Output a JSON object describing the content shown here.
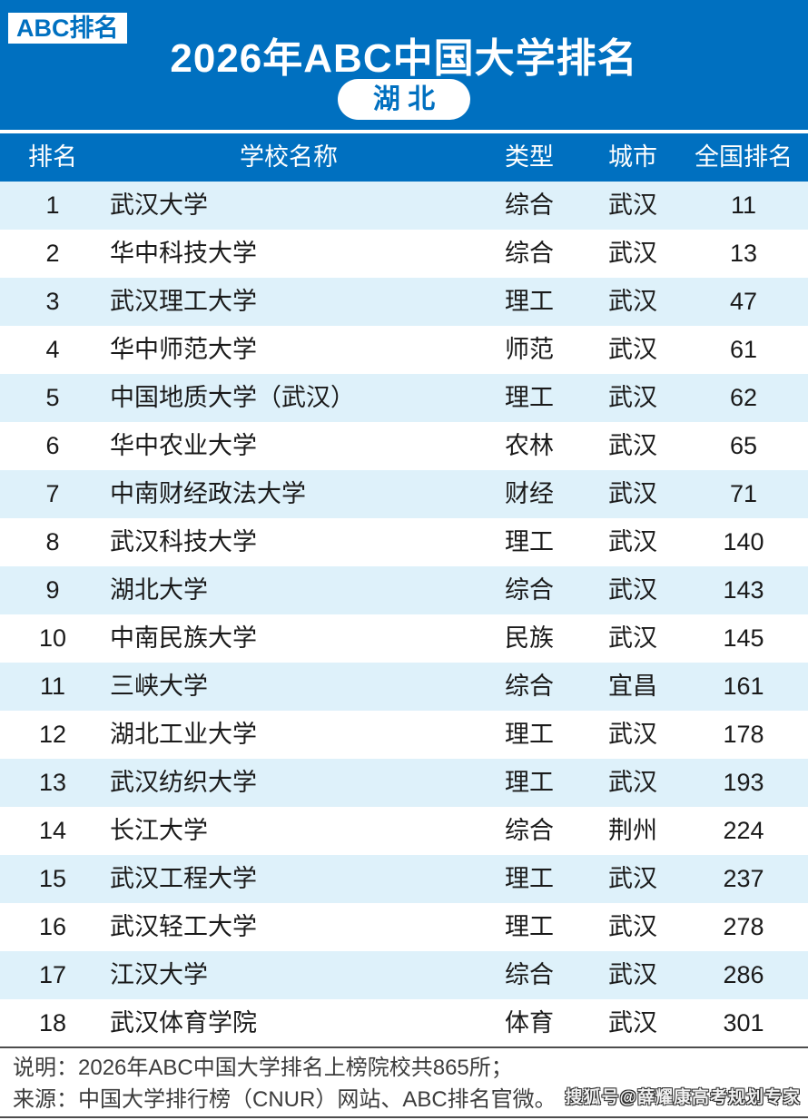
{
  "banner": {
    "badge": "ABC排名",
    "title": "2026年ABC中国大学排名",
    "province_pill": "湖 北"
  },
  "table": {
    "headers": [
      "排名",
      "学校名称",
      "类型",
      "城市",
      "全国排名"
    ],
    "rows": [
      [
        "1",
        "武汉大学",
        "综合",
        "武汉",
        "11"
      ],
      [
        "2",
        "华中科技大学",
        "综合",
        "武汉",
        "13"
      ],
      [
        "3",
        "武汉理工大学",
        "理工",
        "武汉",
        "47"
      ],
      [
        "4",
        "华中师范大学",
        "师范",
        "武汉",
        "61"
      ],
      [
        "5",
        "中国地质大学（武汉）",
        "理工",
        "武汉",
        "62"
      ],
      [
        "6",
        "华中农业大学",
        "农林",
        "武汉",
        "65"
      ],
      [
        "7",
        "中南财经政法大学",
        "财经",
        "武汉",
        "71"
      ],
      [
        "8",
        "武汉科技大学",
        "理工",
        "武汉",
        "140"
      ],
      [
        "9",
        "湖北大学",
        "综合",
        "武汉",
        "143"
      ],
      [
        "10",
        "中南民族大学",
        "民族",
        "武汉",
        "145"
      ],
      [
        "11",
        "三峡大学",
        "综合",
        "宜昌",
        "161"
      ],
      [
        "12",
        "湖北工业大学",
        "理工",
        "武汉",
        "178"
      ],
      [
        "13",
        "武汉纺织大学",
        "理工",
        "武汉",
        "193"
      ],
      [
        "14",
        "长江大学",
        "综合",
        "荆州",
        "224"
      ],
      [
        "15",
        "武汉工程大学",
        "理工",
        "武汉",
        "237"
      ],
      [
        "16",
        "武汉轻工大学",
        "理工",
        "武汉",
        "278"
      ],
      [
        "17",
        "江汉大学",
        "综合",
        "武汉",
        "286"
      ],
      [
        "18",
        "武汉体育学院",
        "体育",
        "武汉",
        "301"
      ]
    ]
  },
  "footer": {
    "note": "说明：2026年ABC中国大学排名上榜院校共865所；",
    "source": "来源：中国大学排行榜（CNUR）网站、ABC排名官微。",
    "watermark": "搜狐号@薛耀康高考规划专家"
  },
  "colors": {
    "primary_blue": "#0070c0",
    "row_alt_blue": "#def1fa",
    "footer_text": "#3d3d3d"
  }
}
